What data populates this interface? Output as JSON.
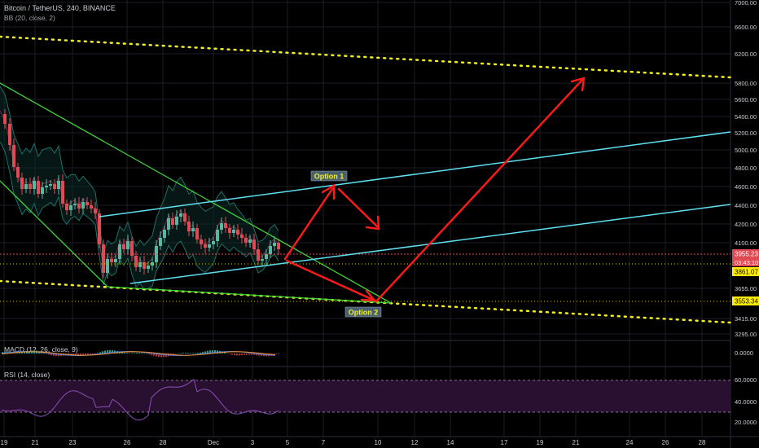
{
  "header": {
    "symbol": "Bitcoin / TetherUS, 240, BINANCE",
    "bb_label": "BB (20, close, 2)"
  },
  "colors": {
    "background": "#000000",
    "grid": "#1a1e26",
    "up_candle": "#56b8a2",
    "down_candle": "#e04a54",
    "channel_green": "#3fd43a",
    "channel_cyan": "#5fe0f0",
    "dotted_yellow": "#f0f020",
    "arrow_red": "#ff1a1a",
    "macd_line": "#3f7de0",
    "signal_line": "#f09030",
    "rsi_line": "#8a4fb8",
    "rsi_band": "#2a1030",
    "price_tag": "#e04a54",
    "support_tag": "#ffee00"
  },
  "price_axis": {
    "ticks": [
      "7000.00",
      "6600.00",
      "6200.00",
      "5800.00",
      "5600.00",
      "5400.00",
      "5200.00",
      "5000.00",
      "4800.00",
      "4600.00",
      "4400.00",
      "4200.00",
      "4100.00",
      "3655.00",
      "3415.00",
      "3295.00"
    ],
    "current_price": "3955.23",
    "countdown": "03:43:10",
    "level_1": "3861.07",
    "level_2": "3553.34"
  },
  "time_axis": {
    "labels": [
      "19",
      "21",
      "23",
      "26",
      "28",
      "Dec",
      "3",
      "5",
      "7",
      "10",
      "12",
      "14",
      "17",
      "19",
      "21",
      "24",
      "26",
      "28"
    ]
  },
  "annotations": {
    "option_1": "Option 1",
    "option_2": "Option 2"
  },
  "macd": {
    "label": "MACD (12, 26, close, 9)",
    "axis_value": "0.0000"
  },
  "rsi": {
    "label": "RSI (14, close)",
    "ticks": [
      "60.0000",
      "40.0000",
      "20.0000"
    ]
  },
  "chart_data": {
    "type": "candlestick",
    "symbol": "Bitcoin / TetherUS",
    "timeframe": "240",
    "exchange": "BINANCE",
    "indicators": [
      "BB (20, close, 2)",
      "MACD (12, 26, close, 9)",
      "RSI (14, close)"
    ],
    "current_price": 3955.23,
    "levels": [
      3861.07,
      3553.34
    ],
    "scenarios": [
      "Option 1",
      "Option 2"
    ]
  }
}
